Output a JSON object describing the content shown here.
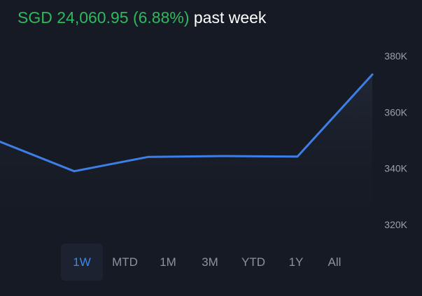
{
  "header": {
    "change_text": "SGD 24,060.95 (6.88%)",
    "period_text": "past week"
  },
  "ranges": {
    "selected": "1W",
    "items": [
      {
        "label": "1W"
      },
      {
        "label": "MTD"
      },
      {
        "label": "1M"
      },
      {
        "label": "3M"
      },
      {
        "label": "YTD"
      },
      {
        "label": "1Y"
      },
      {
        "label": "All"
      }
    ]
  },
  "colors": {
    "background": "#151a24",
    "gain": "#2fb95c",
    "line": "#3d7fe6",
    "active_tab": "#3d86ec",
    "inactive_tab": "#8d939e",
    "axis_label": "#9aa0ab"
  },
  "chart_data": {
    "type": "area",
    "y_ticks": [
      {
        "value": 380000,
        "label": "380K"
      },
      {
        "value": 360000,
        "label": "360K"
      },
      {
        "value": 340000,
        "label": "340K"
      },
      {
        "value": 320000,
        "label": "320K"
      }
    ],
    "ylim": [
      310000,
      392000
    ],
    "series": [
      {
        "values": [
          349500,
          339000,
          344100,
          344400,
          344200,
          373400
        ]
      }
    ],
    "grid": false,
    "legend": "none"
  }
}
